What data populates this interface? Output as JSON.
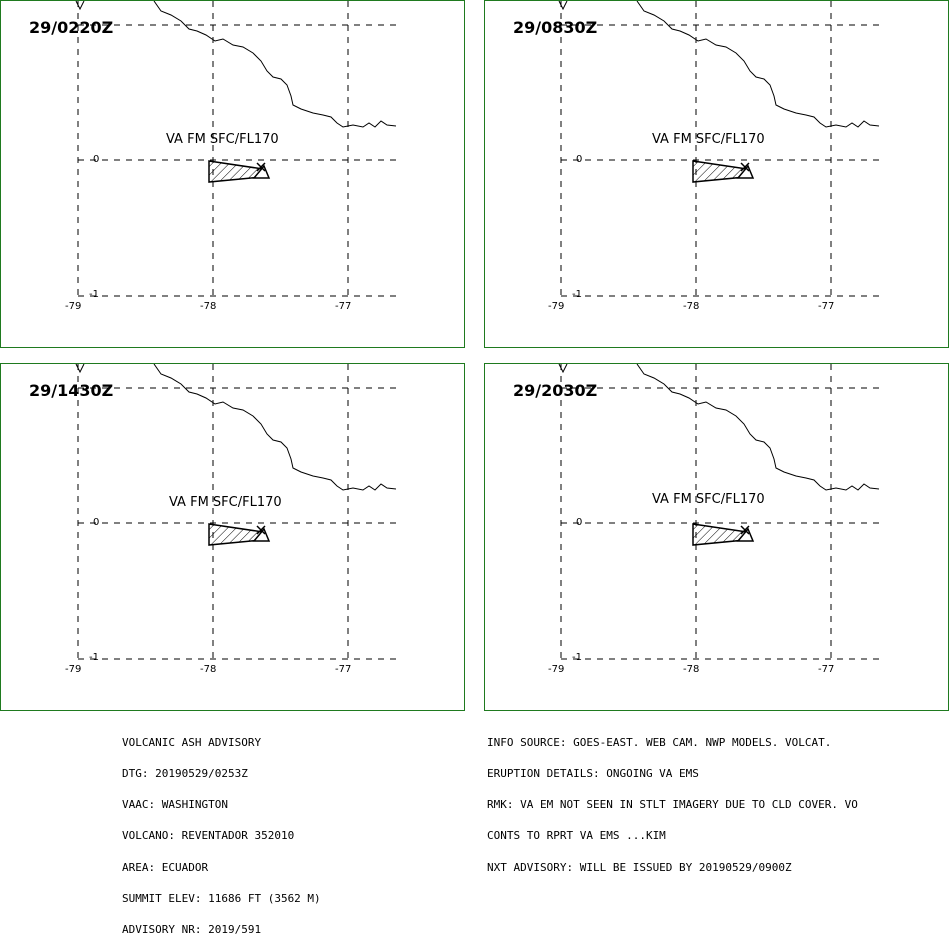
{
  "panels": [
    {
      "time": "29/0220Z",
      "va_text": "VA FM SFC/FL170"
    },
    {
      "time": "29/0830Z",
      "va_text": "VA FM SFC/FL170"
    },
    {
      "time": "29/1430Z",
      "va_text": "VA FM SFC/FL170"
    },
    {
      "time": "29/2030Z",
      "va_text": "VA FM SFC/FL170"
    }
  ],
  "axes": {
    "lon_ticks": [
      "-79",
      "-78",
      "-77"
    ],
    "lat_ticks": [
      "0",
      "-1"
    ]
  },
  "advisory_left": [
    "VOLCANIC ASH ADVISORY",
    "DTG: 20190529/0253Z",
    "VAAC: WASHINGTON",
    "VOLCANO: REVENTADOR 352010",
    "AREA: ECUADOR",
    "SUMMIT ELEV: 11686 FT (3562 M)",
    "ADVISORY NR: 2019/591"
  ],
  "advisory_right": [
    "INFO SOURCE: GOES-EAST. WEB CAM. NWP MODELS. VOLCAT.",
    "ERUPTION DETAILS: ONGOING VA EMS",
    "RMK: VA EM NOT SEEN IN STLT IMAGERY DUE TO CLD COVER. VO",
    "CONTS TO RPRT VA EMS ...KIM",
    "NXT ADVISORY: WILL BE ISSUED BY 20190529/0900Z"
  ],
  "colors": {
    "panel_border": "#1f7a1f",
    "lines": "#000000"
  }
}
